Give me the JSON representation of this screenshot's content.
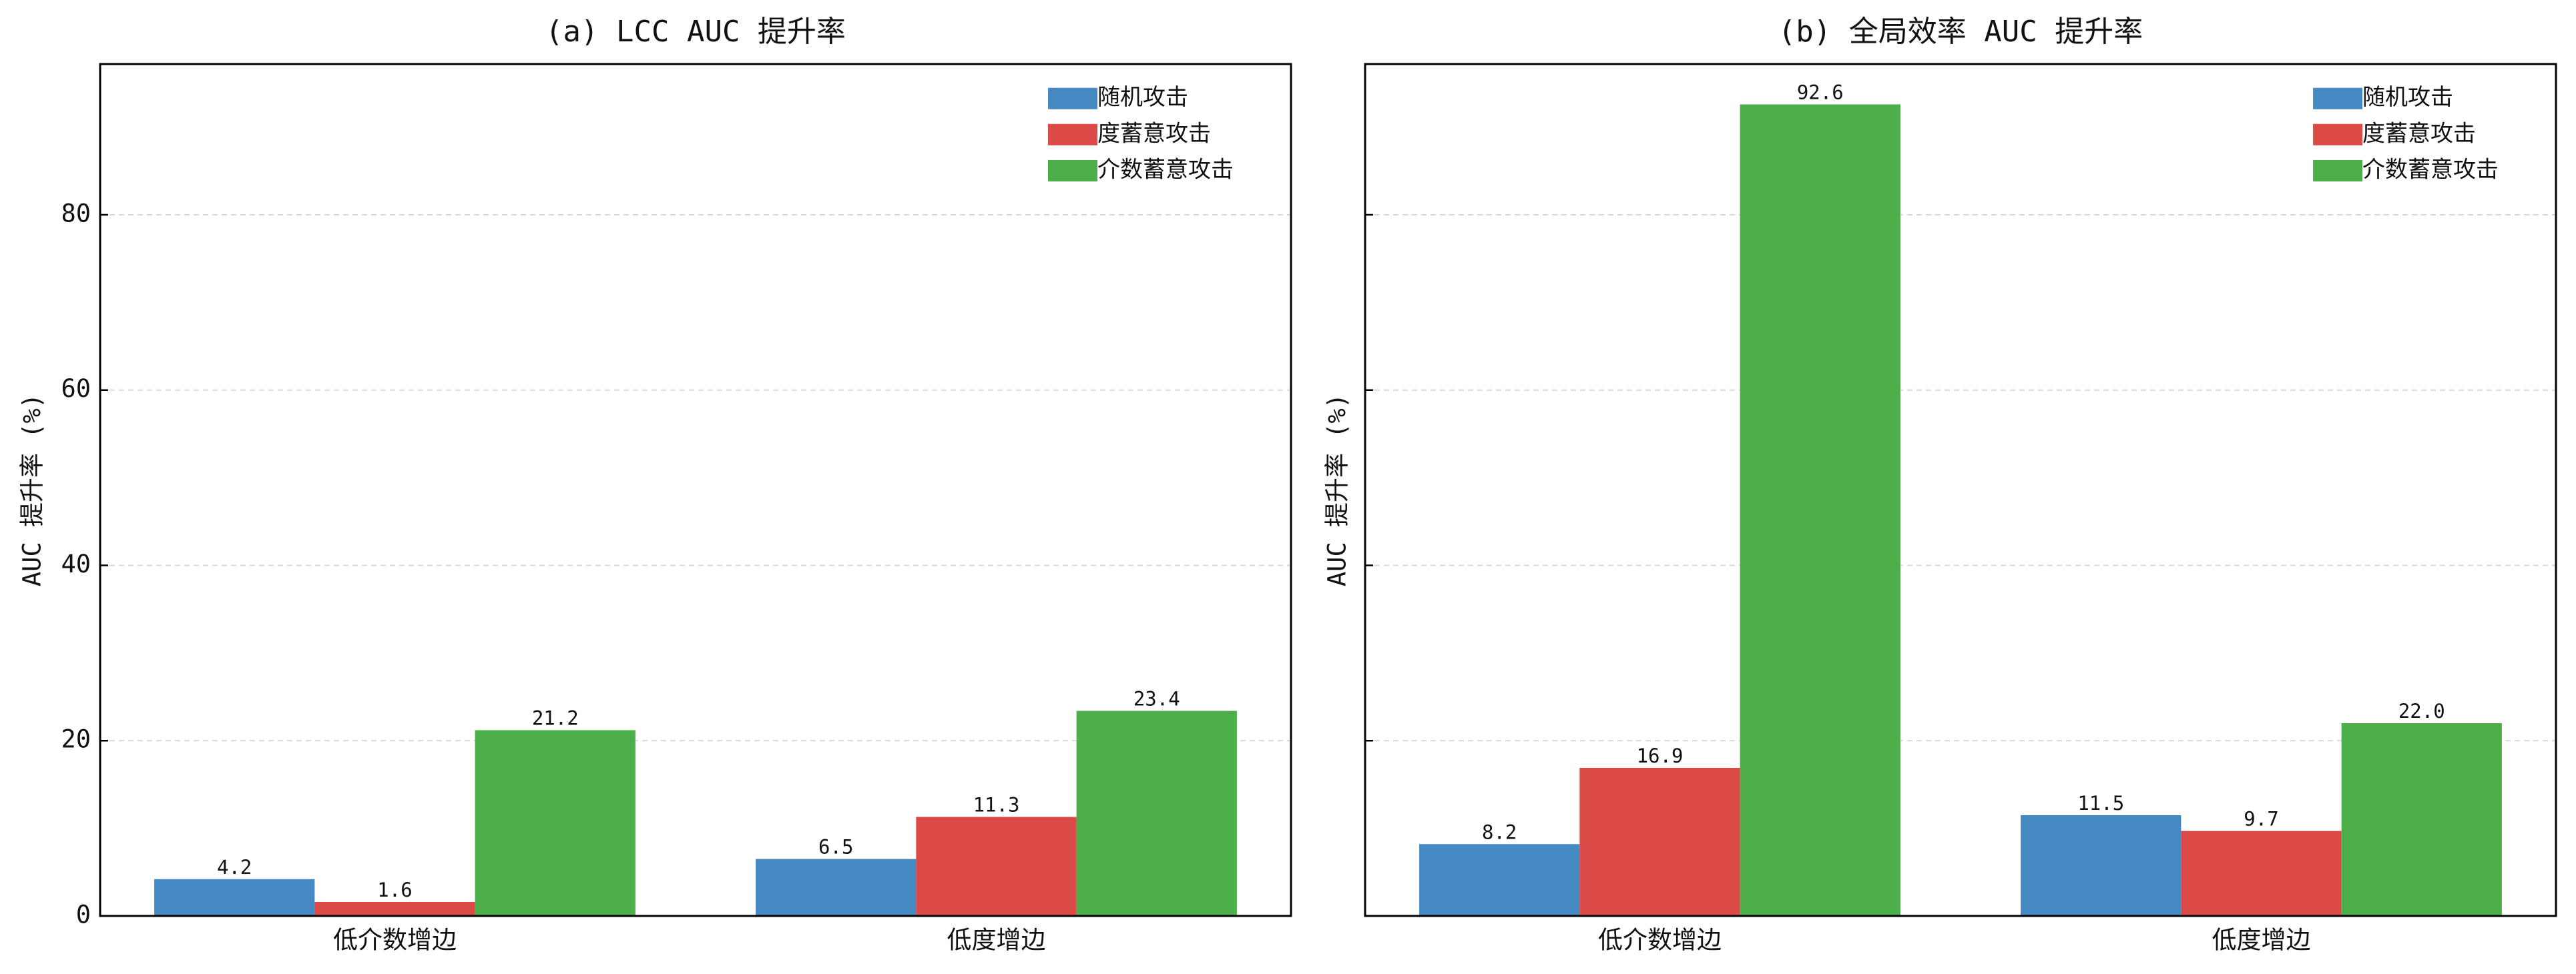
{
  "chart_data": [
    {
      "type": "bar",
      "title": "(a) LCC AUC 提升率",
      "ylabel": "AUC 提升率 (%)",
      "categories": [
        "低介数增边",
        "低度增边"
      ],
      "series": [
        {
          "name": "随机攻击",
          "color": "#4589c2",
          "values": [
            4.2,
            6.5
          ],
          "value_labels": [
            "4.2",
            "6.5"
          ]
        },
        {
          "name": "度蓄意攻击",
          "color": "#dc4a48",
          "values": [
            1.6,
            11.3
          ],
          "value_labels": [
            "1.6",
            "11.3"
          ]
        },
        {
          "name": "介数蓄意攻击",
          "color": "#4daf4a",
          "values": [
            21.2,
            23.4
          ],
          "value_labels": [
            "21.2",
            "23.4"
          ]
        }
      ],
      "ylim": [
        0,
        97.2
      ],
      "yticks": [
        0,
        20,
        40,
        60,
        80
      ],
      "show_ytick_labels": true,
      "grid": true,
      "legend": "upper right"
    },
    {
      "type": "bar",
      "title": "(b) 全局效率 AUC 提升率",
      "ylabel": "AUC 提升率 (%)",
      "categories": [
        "低介数增边",
        "低度增边"
      ],
      "series": [
        {
          "name": "随机攻击",
          "color": "#4589c2",
          "values": [
            8.2,
            11.5
          ],
          "value_labels": [
            "8.2",
            "11.5"
          ]
        },
        {
          "name": "度蓄意攻击",
          "color": "#dc4a48",
          "values": [
            16.9,
            9.7
          ],
          "value_labels": [
            "16.9",
            "9.7"
          ]
        },
        {
          "name": "介数蓄意攻击",
          "color": "#4daf4a",
          "values": [
            92.6,
            22.0
          ],
          "value_labels": [
            "92.6",
            "22.0"
          ]
        }
      ],
      "ylim": [
        0,
        97.2
      ],
      "yticks": [
        0,
        20,
        40,
        60,
        80
      ],
      "show_ytick_labels": false,
      "grid": true,
      "legend": "upper right"
    }
  ]
}
